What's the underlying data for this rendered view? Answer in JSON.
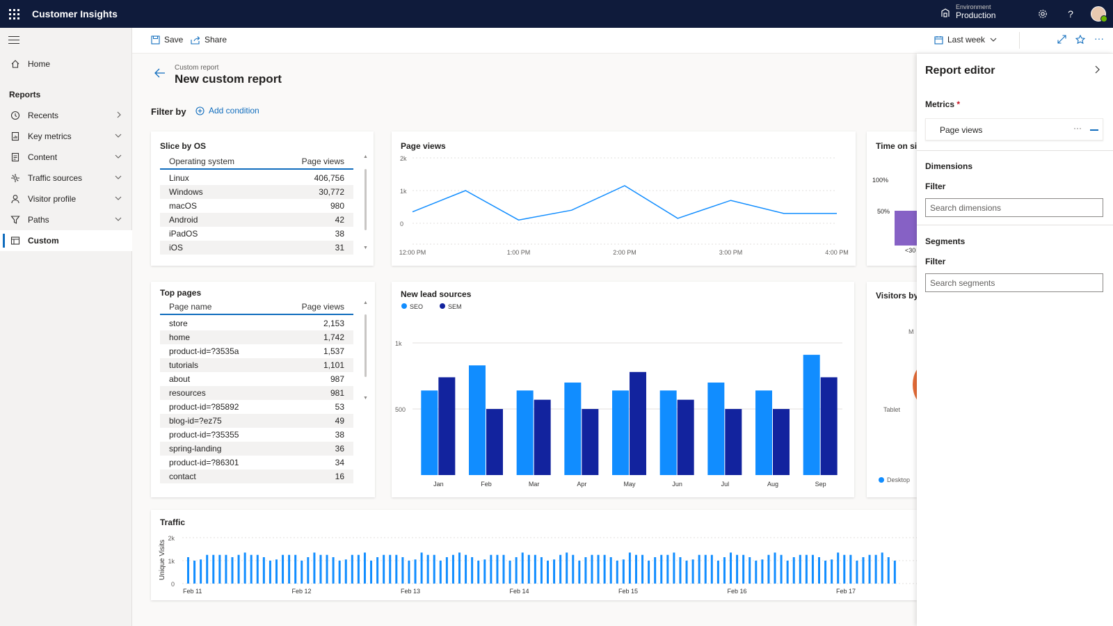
{
  "app": {
    "title": "Customer Insights"
  },
  "environment": {
    "label": "Environment",
    "value": "Production"
  },
  "sidebar": {
    "home": "Home",
    "section_title": "Reports",
    "items": [
      {
        "label": "Recents",
        "icon": "history-icon"
      },
      {
        "label": "Key metrics",
        "icon": "document-chart-icon"
      },
      {
        "label": "Content",
        "icon": "document-icon"
      },
      {
        "label": "Traffic sources",
        "icon": "traffic-icon"
      },
      {
        "label": "Visitor profile",
        "icon": "person-icon"
      },
      {
        "label": "Paths",
        "icon": "filter-funnel-icon"
      },
      {
        "label": "Custom",
        "icon": "table-icon",
        "active": true
      }
    ]
  },
  "toolbar": {
    "save_label": "Save",
    "share_label": "Share",
    "date_range": "Last week"
  },
  "page": {
    "breadcrumb": "Custom report",
    "title": "New custom report"
  },
  "filter": {
    "label": "Filter by",
    "add_condition": "Add condition"
  },
  "slice_by_os": {
    "title": "Slice by OS",
    "columns": [
      "Operating system",
      "Page views"
    ],
    "rows": [
      {
        "name": "Linux",
        "value": "406,756"
      },
      {
        "name": "Windows",
        "value": "30,772"
      },
      {
        "name": "macOS",
        "value": "980"
      },
      {
        "name": "Android",
        "value": "42"
      },
      {
        "name": "iPadOS",
        "value": "38"
      },
      {
        "name": "iOS",
        "value": "31"
      }
    ]
  },
  "top_pages": {
    "title": "Top pages",
    "columns": [
      "Page name",
      "Page views"
    ],
    "rows": [
      {
        "name": "store",
        "value": "2,153"
      },
      {
        "name": "home",
        "value": "1,742"
      },
      {
        "name": "product-id=?3535a",
        "value": "1,537"
      },
      {
        "name": "tutorials",
        "value": "1,101"
      },
      {
        "name": "about",
        "value": "987"
      },
      {
        "name": "resources",
        "value": "981"
      },
      {
        "name": "product-id=?85892",
        "value": "53"
      },
      {
        "name": "blog-id=?ez75",
        "value": "49"
      },
      {
        "name": "product-id=?35355",
        "value": "38"
      },
      {
        "name": "spring-landing",
        "value": "36"
      },
      {
        "name": "product-id=?86301",
        "value": "34"
      },
      {
        "name": "contact",
        "value": "16"
      }
    ]
  },
  "time_on_site": {
    "title": "Time on sit",
    "tick_labels": [
      "100%",
      "50%"
    ],
    "bar_label": "<30",
    "bar_color": "#8661c5"
  },
  "visitors_by": {
    "title": "Visitors by",
    "labels": [
      "M",
      "Tablet"
    ],
    "legend": "Desktop",
    "colors": [
      "#118dff",
      "#e66c37"
    ]
  },
  "report_editor": {
    "title": "Report editor",
    "metrics_label": "Metrics",
    "required_mark": "*",
    "metric_item": "Page views",
    "dimensions_label": "Dimensions",
    "dimensions_filter_label": "Filter",
    "dimensions_placeholder": "Search dimensions",
    "segments_label": "Segments",
    "segments_filter_label": "Filter",
    "segments_placeholder": "Search segments"
  },
  "chart_data": [
    {
      "type": "line",
      "title": "Page views",
      "x": [
        "12:00 PM",
        "",
        "1:00 PM",
        "",
        "2:00 PM",
        "",
        "3:00 PM",
        "",
        "4:00 PM"
      ],
      "x_tick_labels": [
        "12:00 PM",
        "1:00 PM",
        "2:00 PM",
        "3:00 PM",
        "4:00 PM"
      ],
      "y_tick_labels": [
        "2k",
        "1k",
        "0"
      ],
      "values": [
        350,
        1000,
        100,
        400,
        1150,
        150,
        700,
        300,
        300
      ],
      "ylim": [
        0,
        2000
      ],
      "color": "#118dff"
    },
    {
      "type": "bar",
      "title": "New lead sources",
      "categories": [
        "Jan",
        "Feb",
        "Mar",
        "Apr",
        "May",
        "Jun",
        "Jul",
        "Aug",
        "Sep"
      ],
      "series": [
        {
          "name": "SEO",
          "color": "#118dff",
          "values": [
            640,
            830,
            640,
            700,
            640,
            640,
            700,
            640,
            910
          ]
        },
        {
          "name": "SEM",
          "color": "#12239e",
          "values": [
            740,
            500,
            570,
            500,
            780,
            570,
            500,
            500,
            740
          ]
        }
      ],
      "y_tick_labels": [
        "1k",
        "500"
      ],
      "ylim": [
        0,
        1000
      ],
      "legend": "top-left"
    },
    {
      "type": "bar",
      "title": "Traffic",
      "ylabel": "Unique Visits",
      "y_tick_labels": [
        "2k",
        "1k",
        "0"
      ],
      "ylim": [
        0,
        2000
      ],
      "x_tick_labels": [
        "Feb 11",
        "Feb 12",
        "Feb 13",
        "Feb 14",
        "Feb 15",
        "Feb 16",
        "Feb 17"
      ],
      "color": "#118dff",
      "values": [
        1150,
        1000,
        1050,
        1250,
        1250,
        1250,
        1250,
        1150,
        1250,
        1350,
        1250,
        1250,
        1150,
        1000,
        1050,
        1250,
        1250,
        1250,
        1000,
        1150,
        1350,
        1250,
        1250,
        1150,
        1000,
        1050,
        1250,
        1250,
        1350,
        1000,
        1150,
        1250,
        1250,
        1250,
        1150,
        1000,
        1050,
        1350,
        1250,
        1250,
        1000,
        1150,
        1250,
        1350,
        1250,
        1150,
        1000,
        1050,
        1250,
        1250,
        1250,
        1000,
        1150,
        1350,
        1250,
        1250,
        1150,
        1000,
        1050,
        1250,
        1350,
        1250,
        1000,
        1150,
        1250,
        1250,
        1250,
        1150,
        1000,
        1050,
        1350,
        1250,
        1250,
        1000,
        1150,
        1250,
        1250,
        1350,
        1150,
        1000,
        1050,
        1250,
        1250,
        1250,
        1000,
        1150,
        1350,
        1250,
        1250,
        1150,
        1000,
        1050,
        1250,
        1350,
        1250,
        1000,
        1150,
        1250,
        1250,
        1250,
        1150,
        1000,
        1050,
        1350,
        1250,
        1250,
        1000,
        1150,
        1250,
        1250,
        1350,
        1150,
        1000
      ]
    }
  ]
}
